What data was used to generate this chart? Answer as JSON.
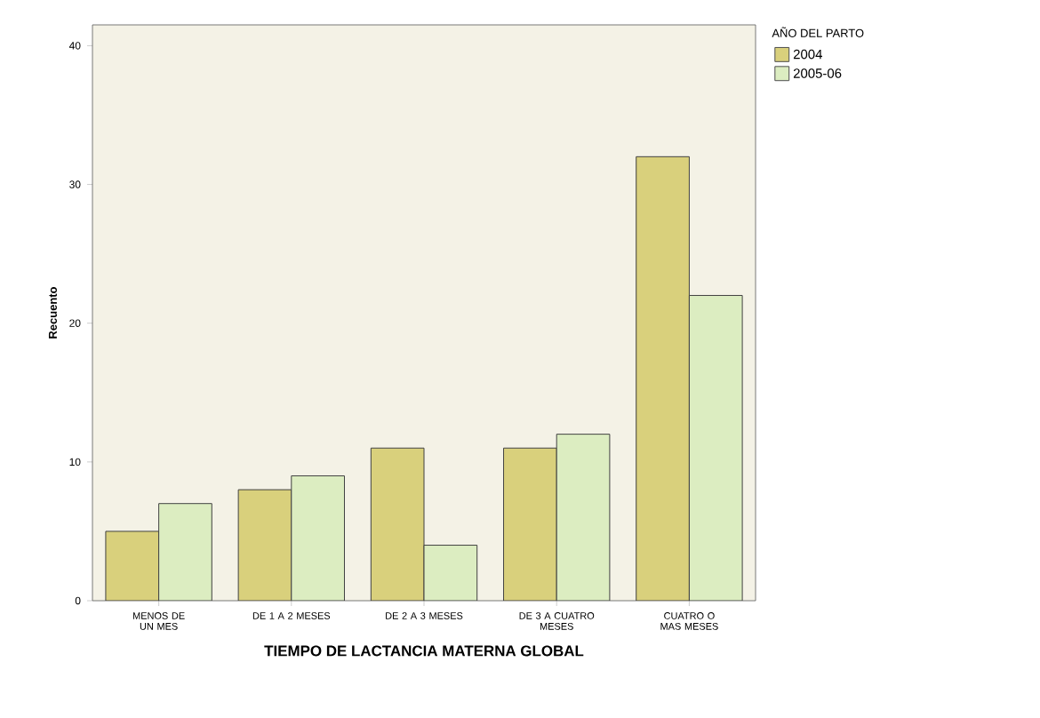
{
  "chart_data": {
    "type": "bar",
    "xlabel": "TIEMPO DE LACTANCIA MATERNA GLOBAL",
    "ylabel": "Recuento",
    "legend_title": "AÑO DEL PARTO",
    "categories": [
      "MENOS DE UN MES",
      "DE 1 A 2 MESES",
      "DE 2 A 3 MESES",
      "DE 3 A CUATRO MESES",
      "CUATRO O MAS MESES"
    ],
    "series": [
      {
        "name": "2004",
        "color": "#d9d07c",
        "values": [
          5,
          8,
          11,
          11,
          32
        ]
      },
      {
        "name": "2005-06",
        "color": "#dcedc1",
        "values": [
          7,
          9,
          4,
          12,
          22
        ]
      }
    ],
    "ylim": [
      0,
      41.5
    ],
    "yticks": [
      0,
      10,
      20,
      30,
      40
    ],
    "grid": false,
    "legend": "top right"
  }
}
